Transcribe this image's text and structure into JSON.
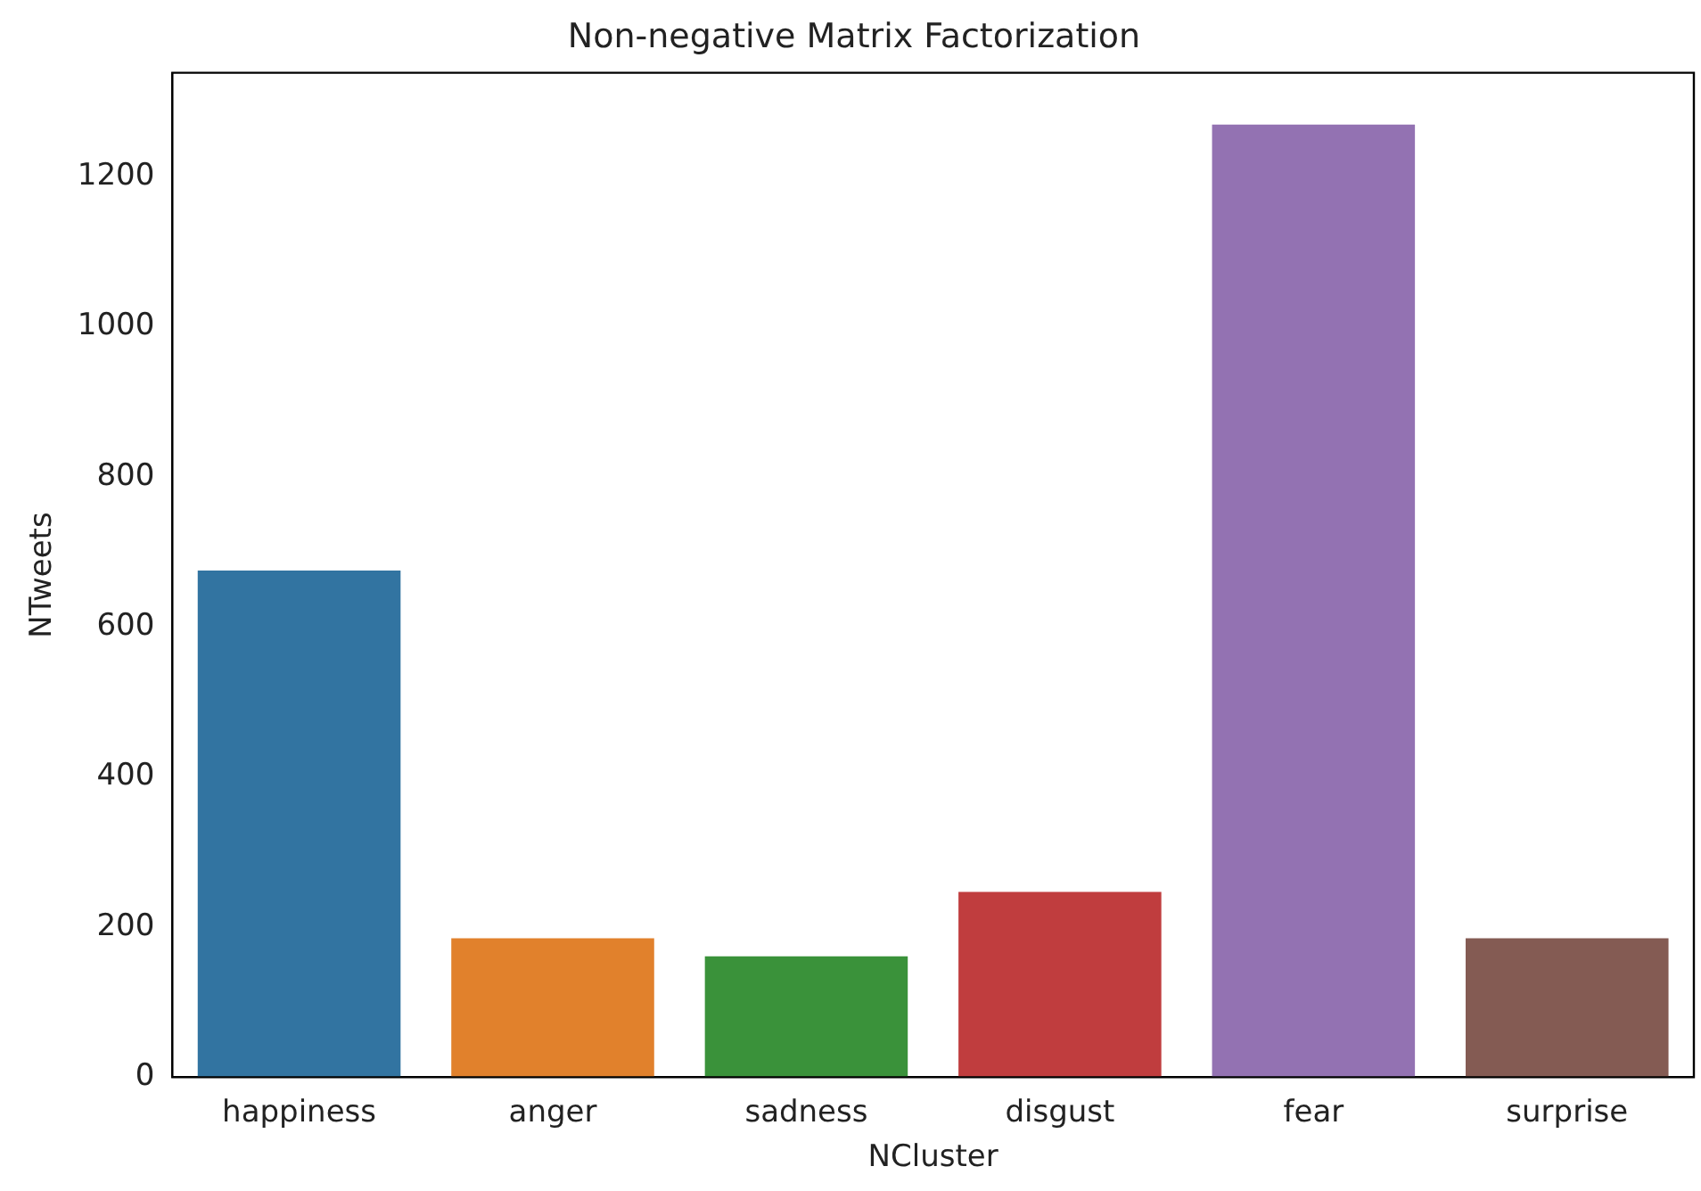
{
  "chart_data": {
    "type": "bar",
    "title": "Non-negative Matrix Factorization",
    "xlabel": "NCluster",
    "ylabel": "NTweets",
    "categories": [
      "happiness",
      "anger",
      "sadness",
      "disgust",
      "fear",
      "surprise"
    ],
    "values": [
      675,
      185,
      161,
      247,
      1269,
      185
    ],
    "colors": [
      "#3274a1",
      "#e1812c",
      "#3a923a",
      "#c03d3e",
      "#9372b2",
      "#845b53"
    ],
    "ylim": [
      0,
      1338
    ],
    "yticks": [
      0,
      200,
      400,
      600,
      800,
      1000,
      1200
    ],
    "grid": false,
    "legend": false
  }
}
